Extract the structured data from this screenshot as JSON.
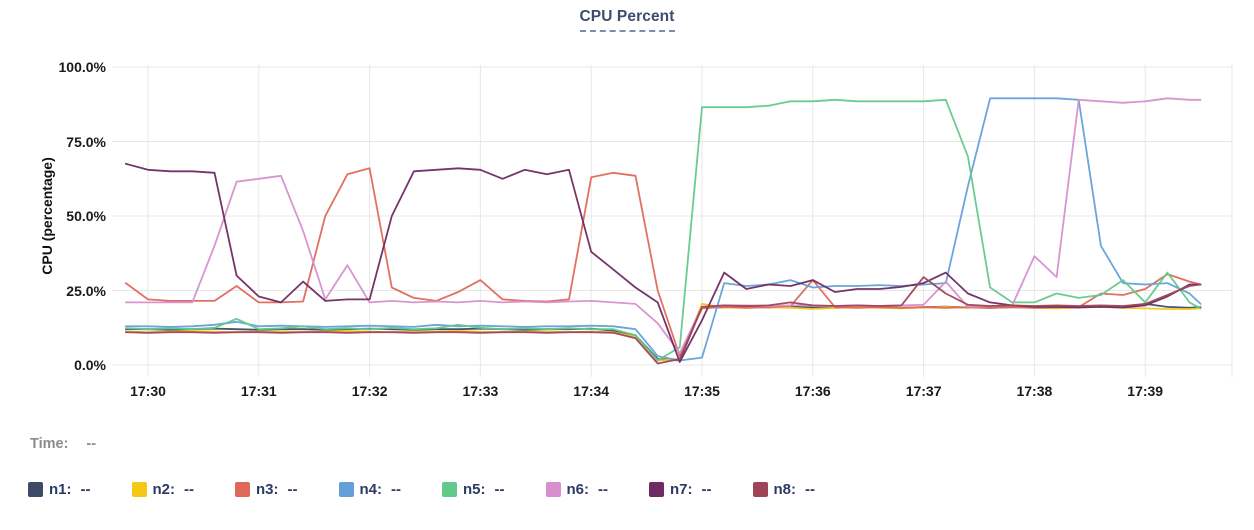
{
  "header": {
    "title": "CPU Percent"
  },
  "status_row": {
    "label": "Time:",
    "value": "--"
  },
  "legend": {
    "position": "bottom",
    "items": [
      {
        "id": "n1",
        "label": "n1:",
        "value": "--"
      },
      {
        "id": "n2",
        "label": "n2:",
        "value": "--"
      },
      {
        "id": "n3",
        "label": "n3:",
        "value": "--"
      },
      {
        "id": "n4",
        "label": "n4:",
        "value": "--"
      },
      {
        "id": "n5",
        "label": "n5:",
        "value": "--"
      },
      {
        "id": "n6",
        "label": "n6:",
        "value": "--"
      },
      {
        "id": "n7",
        "label": "n7:",
        "value": "--"
      },
      {
        "id": "n8",
        "label": "n8:",
        "value": "--"
      }
    ]
  },
  "colors": {
    "title": "#3e4c6e",
    "title_underline": "#7c8cb0",
    "gridline": "#e7e7e7",
    "tick_text": "#1a1a1a",
    "legend_text": "#2b3a64",
    "time_text": "#8b8b8b"
  },
  "chart_data": {
    "type": "line",
    "title": "CPU Percent",
    "xlabel": "",
    "ylabel": "CPU (percentage)",
    "ylim": [
      0,
      100
    ],
    "grid": true,
    "legend_position": "bottom",
    "y_ticks": [
      0,
      25,
      50,
      75,
      100
    ],
    "y_tick_labels": [
      "0.0%",
      "25.0%",
      "50.0%",
      "75.0%",
      "100.0%"
    ],
    "x_tick_minutes": [
      0,
      1,
      2,
      3,
      4,
      5,
      6,
      7,
      8,
      9
    ],
    "x_tick_labels": [
      "17:30",
      "17:31",
      "17:32",
      "17:33",
      "17:34",
      "17:35",
      "17:36",
      "17:37",
      "17:38",
      "17:39"
    ],
    "x_range_minutes": [
      -0.2,
      9.5
    ],
    "x_offsets_min": [
      -0.2,
      0,
      0.2,
      0.4,
      0.6,
      0.8,
      1,
      1.2,
      1.4,
      1.6,
      1.8,
      2,
      2.2,
      2.4,
      2.6,
      2.8,
      3,
      3.2,
      3.4,
      3.6,
      3.8,
      4,
      4.2,
      4.4,
      4.6,
      4.8,
      5,
      5.2,
      5.4,
      5.6,
      5.8,
      6,
      6.2,
      6.4,
      6.6,
      6.8,
      7,
      7.2,
      7.4,
      7.6,
      7.8,
      8,
      8.2,
      8.4,
      8.6,
      8.8,
      9,
      9.2,
      9.4,
      9.5
    ],
    "series": [
      {
        "name": "n1",
        "color": "#3d4a68",
        "values": [
          12,
          12,
          11.8,
          12,
          12.2,
          12,
          11.8,
          12,
          12,
          11.8,
          12,
          12.2,
          12,
          11.8,
          12,
          12,
          12.2,
          12,
          11.8,
          12,
          12,
          12.2,
          11.5,
          10,
          2,
          1.5,
          19.5,
          19.3,
          19.5,
          19.3,
          19.6,
          19.3,
          19.2,
          19.4,
          19.3,
          19.2,
          19.4,
          19.6,
          19.3,
          19.2,
          19.4,
          19.3,
          19.2,
          19.4,
          19.6,
          19.3,
          20.5,
          19.5,
          19.2,
          19.4
        ]
      },
      {
        "name": "n2",
        "color": "#f6c714",
        "values": [
          11.2,
          11,
          11.2,
          11.4,
          11.2,
          11,
          11.2,
          11.2,
          11,
          11.2,
          11.4,
          11.2,
          11,
          11.2,
          11.2,
          11.4,
          11.2,
          11,
          11.2,
          11.2,
          11,
          11.2,
          11,
          9.5,
          1.5,
          2,
          20.5,
          19.3,
          19.2,
          19.4,
          19.2,
          18.8,
          19.2,
          19.4,
          19.2,
          19,
          19.3,
          19.5,
          19.2,
          19.4,
          19.6,
          19.2,
          19,
          19.3,
          19.5,
          19.2,
          19,
          18.8,
          18.8,
          19
        ]
      },
      {
        "name": "n3",
        "color": "#e0685a",
        "values": [
          27.5,
          22,
          21.5,
          21.5,
          21.5,
          26.5,
          21,
          21,
          21.3,
          50,
          64,
          66,
          26,
          22.5,
          21.5,
          24.5,
          28.5,
          22,
          21.5,
          21.3,
          22,
          63,
          64.5,
          63.5,
          25,
          3,
          19,
          19.5,
          19.2,
          19.4,
          19.8,
          28.5,
          19.4,
          19.2,
          19.4,
          19.2,
          19.4,
          19.2,
          19.4,
          19.2,
          19.4,
          19.2,
          19.4,
          19.4,
          24,
          23.5,
          25.5,
          30.5,
          28,
          27
        ]
      },
      {
        "name": "n4",
        "color": "#64a0d8",
        "values": [
          13,
          13,
          12.8,
          13,
          13.5,
          14.5,
          13,
          13.2,
          13,
          12.8,
          13,
          13.2,
          13,
          12.8,
          13.5,
          13,
          13.2,
          13,
          12.8,
          13,
          13,
          13.2,
          13,
          12,
          3,
          1.5,
          2.5,
          27.5,
          26.5,
          27,
          28.5,
          26,
          26.5,
          26.5,
          26.8,
          26.5,
          27,
          27.5,
          60,
          89.5,
          89.5,
          89.5,
          89.5,
          89,
          40,
          27.5,
          27,
          27.5,
          24,
          20.5
        ]
      },
      {
        "name": "n5",
        "color": "#63c98a",
        "values": [
          12.3,
          12,
          12.3,
          12,
          12.5,
          15.5,
          12,
          12.3,
          13,
          12,
          12.3,
          12,
          12.5,
          12,
          12.3,
          13.5,
          12.5,
          12,
          12.3,
          12,
          12.3,
          12,
          12,
          10,
          1.5,
          6,
          86.5,
          86.5,
          86.5,
          87,
          88.5,
          88.5,
          89,
          88.5,
          88.5,
          88.5,
          88.5,
          89,
          70,
          26,
          21,
          21,
          24,
          22.5,
          23.5,
          28.5,
          21,
          31,
          21,
          19
        ]
      },
      {
        "name": "n6",
        "color": "#d78fce",
        "values": [
          21,
          21,
          21,
          21,
          40,
          61.5,
          62.5,
          63.5,
          45,
          22,
          33.5,
          21,
          21.5,
          21,
          21.3,
          21,
          21.5,
          21,
          21.3,
          21,
          21.3,
          21.5,
          21,
          20.5,
          14,
          4,
          19.5,
          20,
          20,
          19.8,
          20,
          20,
          19.8,
          20,
          19.8,
          20,
          20.2,
          28,
          19.5,
          19.8,
          20,
          36.5,
          29.5,
          89,
          88.5,
          88,
          88.5,
          89.5,
          89,
          89
        ]
      },
      {
        "name": "n7",
        "color": "#6e2a62",
        "values": [
          67.5,
          65.5,
          65,
          65,
          64.5,
          30,
          23,
          21,
          28,
          21.5,
          22,
          22,
          50,
          65,
          65.5,
          66,
          65.5,
          62.5,
          65.5,
          64,
          65.5,
          38,
          32,
          26,
          21,
          1,
          15,
          31,
          25.5,
          27,
          26.5,
          28.5,
          24.5,
          25.5,
          25.5,
          26.2,
          27.5,
          31,
          24,
          21,
          20,
          19.5,
          19.5,
          19.3,
          19.5,
          19.3,
          20,
          23,
          27,
          27
        ]
      },
      {
        "name": "n8",
        "color": "#9e4457",
        "values": [
          11,
          10.8,
          11,
          11,
          10.8,
          11,
          11,
          10.8,
          11,
          11,
          10.8,
          11,
          11,
          10.8,
          11,
          11,
          10.8,
          11,
          11,
          10.8,
          11,
          11,
          10.8,
          9,
          0.5,
          2,
          19.5,
          20,
          19.8,
          20,
          21,
          20,
          19.8,
          20,
          19.8,
          20,
          29.5,
          24,
          20.2,
          19.8,
          20,
          19.8,
          20,
          19.8,
          20,
          19.8,
          20.5,
          23.5,
          26.5,
          27
        ]
      }
    ]
  }
}
